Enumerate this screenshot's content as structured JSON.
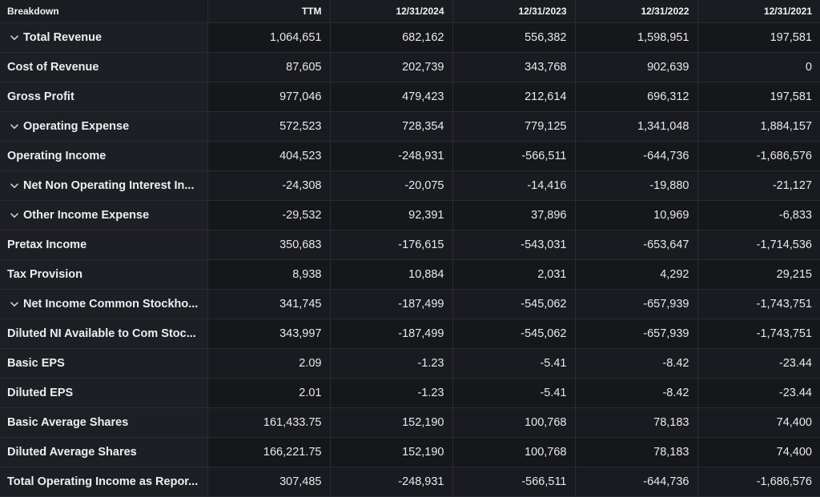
{
  "header": {
    "columns": [
      "Breakdown",
      "TTM",
      "12/31/2024",
      "12/31/2023",
      "12/31/2022",
      "12/31/2021"
    ]
  },
  "rows": [
    {
      "label": "Total Revenue",
      "expandable": true,
      "values": [
        "1,064,651",
        "682,162",
        "556,382",
        "1,598,951",
        "197,581"
      ]
    },
    {
      "label": "Cost of Revenue",
      "expandable": false,
      "values": [
        "87,605",
        "202,739",
        "343,768",
        "902,639",
        "0"
      ]
    },
    {
      "label": "Gross Profit",
      "expandable": false,
      "values": [
        "977,046",
        "479,423",
        "212,614",
        "696,312",
        "197,581"
      ]
    },
    {
      "label": "Operating Expense",
      "expandable": true,
      "values": [
        "572,523",
        "728,354",
        "779,125",
        "1,341,048",
        "1,884,157"
      ]
    },
    {
      "label": "Operating Income",
      "expandable": false,
      "values": [
        "404,523",
        "-248,931",
        "-566,511",
        "-644,736",
        "-1,686,576"
      ]
    },
    {
      "label": "Net Non Operating Interest In...",
      "expandable": true,
      "values": [
        "-24,308",
        "-20,075",
        "-14,416",
        "-19,880",
        "-21,127"
      ]
    },
    {
      "label": "Other Income Expense",
      "expandable": true,
      "values": [
        "-29,532",
        "92,391",
        "37,896",
        "10,969",
        "-6,833"
      ]
    },
    {
      "label": "Pretax Income",
      "expandable": false,
      "values": [
        "350,683",
        "-176,615",
        "-543,031",
        "-653,647",
        "-1,714,536"
      ]
    },
    {
      "label": "Tax Provision",
      "expandable": false,
      "values": [
        "8,938",
        "10,884",
        "2,031",
        "4,292",
        "29,215"
      ]
    },
    {
      "label": "Net Income Common Stockho...",
      "expandable": true,
      "values": [
        "341,745",
        "-187,499",
        "-545,062",
        "-657,939",
        "-1,743,751"
      ]
    },
    {
      "label": "Diluted NI Available to Com Stoc...",
      "expandable": false,
      "values": [
        "343,997",
        "-187,499",
        "-545,062",
        "-657,939",
        "-1,743,751"
      ]
    },
    {
      "label": "Basic EPS",
      "expandable": false,
      "values": [
        "2.09",
        "-1.23",
        "-5.41",
        "-8.42",
        "-23.44"
      ]
    },
    {
      "label": "Diluted EPS",
      "expandable": false,
      "values": [
        "2.01",
        "-1.23",
        "-5.41",
        "-8.42",
        "-23.44"
      ]
    },
    {
      "label": "Basic Average Shares",
      "expandable": false,
      "values": [
        "161,433.75",
        "152,190",
        "100,768",
        "78,183",
        "74,400"
      ]
    },
    {
      "label": "Diluted Average Shares",
      "expandable": false,
      "values": [
        "166,221.75",
        "152,190",
        "100,768",
        "78,183",
        "74,400"
      ]
    },
    {
      "label": "Total Operating Income as Repor...",
      "expandable": false,
      "values": [
        "307,485",
        "-248,931",
        "-566,511",
        "-644,736",
        "-1,686,576"
      ]
    }
  ],
  "icons": {
    "expand": "chevron-down-icon"
  },
  "colors": {
    "background": "#16171b",
    "header_background": "#1b1c21",
    "grid": "#2a2c33",
    "text": "#e8e9ec"
  }
}
